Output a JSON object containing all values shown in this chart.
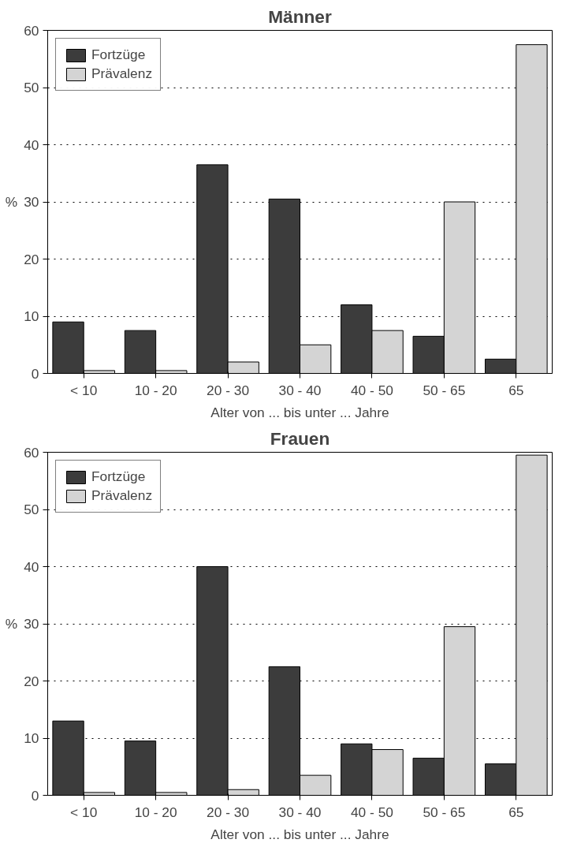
{
  "chart_data": [
    {
      "type": "bar",
      "title": "Männer",
      "ylabel": "%",
      "xlabel": "Alter von ... bis unter ... Jahre",
      "categories": [
        "< 10",
        "10 - 20",
        "20 - 30",
        "30 - 40",
        "40 - 50",
        "50 - 65",
        "65"
      ],
      "series": [
        {
          "name": "Fortzüge",
          "color": "#3c3c3c",
          "values": [
            9,
            7.5,
            36.5,
            30.5,
            12,
            6.5,
            2.5
          ]
        },
        {
          "name": "Prävalenz",
          "color": "#d4d4d4",
          "values": [
            0.5,
            0.5,
            2,
            5,
            7.5,
            30,
            57.5
          ]
        }
      ],
      "ylim": [
        0,
        60
      ],
      "yticks": [
        0,
        10,
        20,
        30,
        40,
        50,
        60
      ],
      "grid": "y",
      "legend": "top left"
    },
    {
      "type": "bar",
      "title": "Frauen",
      "ylabel": "%",
      "xlabel": "Alter von ... bis unter ... Jahre",
      "categories": [
        "< 10",
        "10 - 20",
        "20 - 30",
        "30 - 40",
        "40 - 50",
        "50 - 65",
        "65"
      ],
      "series": [
        {
          "name": "Fortzüge",
          "color": "#3c3c3c",
          "values": [
            13,
            9.5,
            40,
            22.5,
            9,
            6.5,
            5.5
          ]
        },
        {
          "name": "Prävalenz",
          "color": "#d4d4d4",
          "values": [
            0.5,
            0.5,
            1,
            3.5,
            8,
            29.5,
            59.5
          ]
        }
      ],
      "ylim": [
        0,
        60
      ],
      "yticks": [
        0,
        10,
        20,
        30,
        40,
        50,
        60
      ],
      "grid": "y",
      "legend": "top left"
    }
  ]
}
